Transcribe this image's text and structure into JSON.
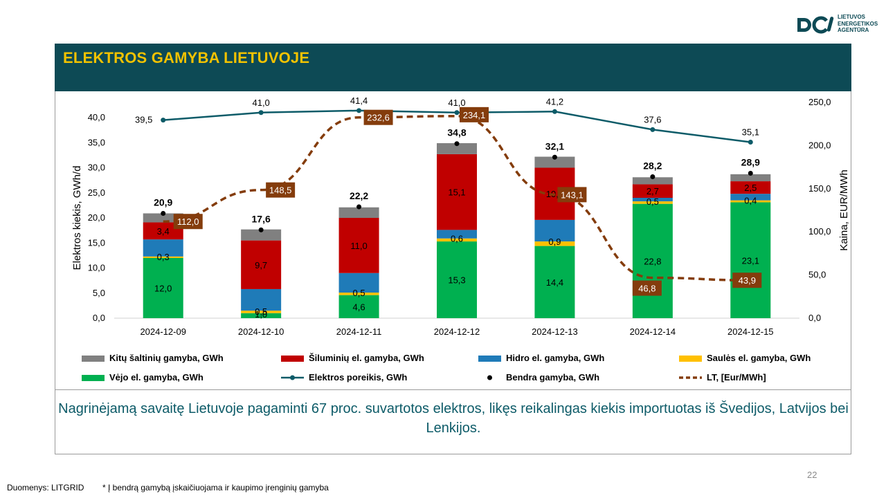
{
  "header": {
    "title": "ELEKTROS GAMYBA LIETUVOJE",
    "logo_lines": [
      "LIETUVOS",
      "ENERGETIKOS",
      "AGENTŪRA"
    ]
  },
  "summary": "Nagrinėjamą savaitę Lietuvoje pagaminti 67 proc. suvartotos elektros, likęs reikalingas kiekis importuotas iš Švedijos, Latvijos bei Lenkijos.",
  "page_number": "22",
  "source": "Duomenys: LITGRID",
  "footnote": "* Į bendrą gamybą įskaičiuojama ir kaupimo įrenginių gamyba",
  "colors": {
    "brand_dark": "#0d4a55",
    "title_yellow": "#f2c200",
    "vejo": "#00b050",
    "saules": "#ffc000",
    "hidro": "#1f7bb8",
    "siluminiu": "#c00000",
    "kitu": "#808080",
    "demand_line": "#0d5b68",
    "price_line": "#843c0c"
  },
  "chart_data": {
    "type": "bar",
    "categories": [
      "2024-12-09",
      "2024-12-10",
      "2024-12-11",
      "2024-12-12",
      "2024-12-13",
      "2024-12-14",
      "2024-12-15"
    ],
    "ylabel": "Elektros kiekis, GWh/d",
    "y2label": "Kaina, EUR/MWh",
    "ylim": [
      0,
      40
    ],
    "y2lim": [
      0,
      250
    ],
    "yticks": [
      "0,0",
      "5,0",
      "10,0",
      "15,0",
      "20,0",
      "25,0",
      "30,0",
      "35,0",
      "40,0"
    ],
    "y2ticks": [
      "0,0",
      "50,0",
      "100,0",
      "150,0",
      "200,0",
      "250,0"
    ],
    "stacked_series": [
      {
        "name": "Vėjo el. gamyba, GWh",
        "color": "#00b050",
        "values": [
          12.0,
          1.0,
          4.6,
          15.3,
          14.4,
          22.8,
          23.1
        ],
        "labels": [
          "12,0",
          "1,0",
          "4,6",
          "15,3",
          "14,4",
          "22,8",
          "23,1"
        ]
      },
      {
        "name": "Saulės el. gamyba, GWh",
        "color": "#ffc000",
        "values": [
          0.3,
          0.5,
          0.5,
          0.6,
          0.9,
          0.5,
          0.4
        ],
        "labels": [
          "0,3",
          "0,5",
          "0,5",
          "0,6",
          "0,9",
          "0,5",
          "0,4"
        ]
      },
      {
        "name": "Hidro el. gamyba, GWh",
        "color": "#1f7bb8",
        "values": [
          3.4,
          4.3,
          3.9,
          1.7,
          4.3,
          0.7,
          1.3
        ],
        "labels": [
          "",
          "",
          "",
          "",
          "",
          "",
          ""
        ]
      },
      {
        "name": "Šiluminių el. gamyba, GWh",
        "color": "#c00000",
        "values": [
          3.4,
          9.7,
          11.0,
          15.1,
          10.4,
          2.7,
          2.5
        ],
        "labels": [
          "3,4",
          "9,7",
          "11,0",
          "15,1",
          "10,4",
          "2,7",
          "2,5"
        ]
      },
      {
        "name": "Kitų šaltinių gamyba,  GWh",
        "color": "#808080",
        "values": [
          1.8,
          2.2,
          2.1,
          2.2,
          2.2,
          1.4,
          1.4
        ],
        "labels": [
          "",
          "",
          "",
          "",
          "",
          "",
          ""
        ]
      }
    ],
    "total_series": {
      "name": "Bendra gamyba, GWh",
      "values": [
        20.9,
        17.6,
        22.2,
        34.8,
        32.1,
        28.2,
        28.9
      ],
      "labels": [
        "20,9",
        "17,6",
        "22,2",
        "34,8",
        "32,1",
        "28,2",
        "28,9"
      ]
    },
    "demand_series": {
      "name": "Elektros poreikis, GWh",
      "values": [
        39.5,
        41.0,
        41.4,
        41.0,
        41.2,
        37.6,
        35.1
      ],
      "labels": [
        "39,5",
        "41,0",
        "41,4",
        "41,0",
        "41,2",
        "37,6",
        "35,1"
      ]
    },
    "price_series": {
      "name": "LT, [Eur/MWh]",
      "axis": "right",
      "values": [
        112.0,
        148.5,
        232.6,
        234.1,
        143.1,
        46.8,
        43.9
      ],
      "labels": [
        "112,0",
        "148,5",
        "232,6",
        "234,1",
        "143,1",
        "46,8",
        "43,9"
      ]
    },
    "legend": [
      {
        "label": "Kitų šaltinių gamyba,  GWh",
        "kind": "bar",
        "color": "#808080"
      },
      {
        "label": "Šiluminių el. gamyba, GWh",
        "kind": "bar",
        "color": "#c00000"
      },
      {
        "label": "Hidro el. gamyba, GWh",
        "kind": "bar",
        "color": "#1f7bb8"
      },
      {
        "label": "Saulės el. gamyba, GWh",
        "kind": "bar",
        "color": "#ffc000"
      },
      {
        "label": "Vėjo el. gamyba, GWh",
        "kind": "bar",
        "color": "#00b050"
      },
      {
        "label": "Elektros poreikis, GWh",
        "kind": "line-marker",
        "color": "#0d5b68"
      },
      {
        "label": "Bendra gamyba, GWh",
        "kind": "dot",
        "color": "#000000"
      },
      {
        "label": "LT, [Eur/MWh]",
        "kind": "dashed",
        "color": "#843c0c"
      }
    ],
    "legend_position": "bottom",
    "grid": false
  }
}
